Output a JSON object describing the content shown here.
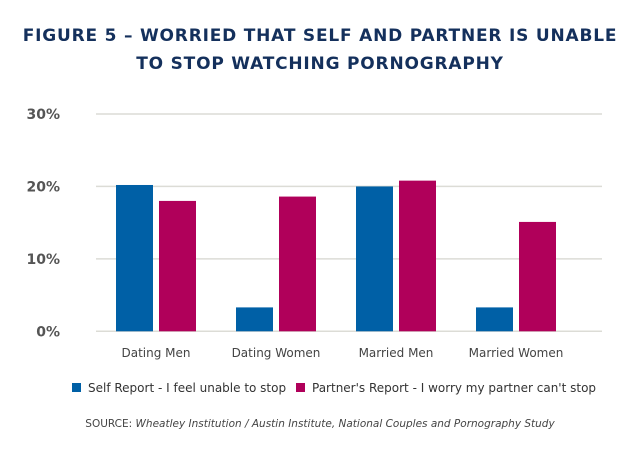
{
  "chart_data": {
    "type": "bar",
    "title_line1": "FIGURE 5 – WORRIED THAT SELF AND PARTNER IS UNABLE",
    "title_line2": "TO STOP WATCHING PORNOGRAPHY",
    "categories": [
      "Dating Men",
      "Dating Women",
      "Married Men",
      "Married Women"
    ],
    "series": [
      {
        "name": "Self Report - I feel unable to stop",
        "color": "#0060a6",
        "values": [
          20.2,
          3.3,
          20.0,
          3.3
        ]
      },
      {
        "name": "Partner's Report - I worry my partner can't stop",
        "color": "#b0005a",
        "values": [
          18.0,
          18.6,
          20.8,
          15.1
        ]
      }
    ],
    "ylim": [
      0,
      30
    ],
    "yticks": [
      0,
      10,
      20,
      30
    ],
    "ytick_labels": [
      "0%",
      "10%",
      "20%",
      "30%"
    ],
    "grid": true,
    "legend_placement": "bottom",
    "source_label": "SOURCE:",
    "source_text": "Wheatley Institution / Austin Institute, National Couples and Pornography Study"
  }
}
